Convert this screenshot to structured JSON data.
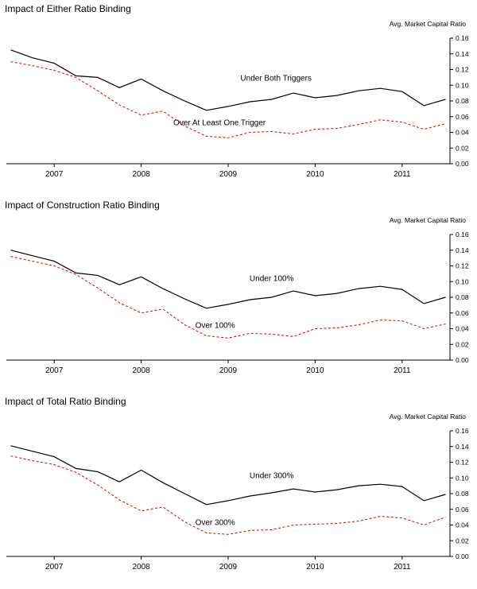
{
  "page": {
    "background": "#ffffff"
  },
  "chart_data": [
    {
      "type": "line",
      "title": "Impact of Either Ratio Binding",
      "y_axis_note": "Avg. Market Capital Ratio",
      "xlim": [
        2006.45,
        2011.55
      ],
      "ylim": [
        0,
        0.16
      ],
      "x_ticks": [
        2007,
        2008,
        2009,
        2010,
        2011
      ],
      "x_tick_labels": [
        "2007",
        "2008",
        "2009",
        "2010",
        "2011"
      ],
      "y_ticks": [
        0.0,
        0.02,
        0.04,
        0.06,
        0.08,
        0.1,
        0.12,
        0.14,
        0.16
      ],
      "grid": false,
      "legend": "inline-annotations",
      "x": [
        2006.5,
        2006.75,
        2007,
        2007.25,
        2007.5,
        2007.75,
        2008,
        2008.25,
        2008.5,
        2008.75,
        2009,
        2009.25,
        2009.5,
        2009.75,
        2010,
        2010.25,
        2010.5,
        2010.75,
        2011,
        2011.25,
        2011.5
      ],
      "series": [
        {
          "id": "under",
          "name": "Under Both Triggers",
          "color": "#000000",
          "style": "solid",
          "values": [
            0.145,
            0.135,
            0.128,
            0.112,
            0.11,
            0.097,
            0.108,
            0.093,
            0.08,
            0.068,
            0.073,
            0.079,
            0.082,
            0.09,
            0.084,
            0.087,
            0.093,
            0.096,
            0.092,
            0.074,
            0.082
          ],
          "label_pos": {
            "x": 2009.55,
            "y": 0.106
          }
        },
        {
          "id": "over",
          "name": "Over At Least One Trigger",
          "color": "#d40000",
          "style": "dashed",
          "values": [
            0.13,
            0.125,
            0.119,
            0.11,
            0.093,
            0.075,
            0.062,
            0.067,
            0.048,
            0.035,
            0.033,
            0.04,
            0.041,
            0.038,
            0.044,
            0.045,
            0.05,
            0.056,
            0.053,
            0.044,
            0.051
          ],
          "label_pos": {
            "x": 2008.9,
            "y": 0.049
          }
        }
      ]
    },
    {
      "type": "line",
      "title": "Impact of Construction Ratio Binding",
      "y_axis_note": "Avg. Market Capital Ratio",
      "xlim": [
        2006.45,
        2011.55
      ],
      "ylim": [
        0,
        0.16
      ],
      "x_ticks": [
        2007,
        2008,
        2009,
        2010,
        2011
      ],
      "x_tick_labels": [
        "2007",
        "2008",
        "2009",
        "2010",
        "2011"
      ],
      "y_ticks": [
        0.0,
        0.02,
        0.04,
        0.06,
        0.08,
        0.1,
        0.12,
        0.14,
        0.16
      ],
      "grid": false,
      "legend": "inline-annotations",
      "x": [
        2006.5,
        2006.75,
        2007,
        2007.25,
        2007.5,
        2007.75,
        2008,
        2008.25,
        2008.5,
        2008.75,
        2009,
        2009.25,
        2009.5,
        2009.75,
        2010,
        2010.25,
        2010.5,
        2010.75,
        2011,
        2011.25,
        2011.5
      ],
      "series": [
        {
          "id": "under",
          "name": "Under 100%",
          "color": "#000000",
          "style": "solid",
          "values": [
            0.14,
            0.133,
            0.126,
            0.111,
            0.108,
            0.096,
            0.106,
            0.091,
            0.078,
            0.066,
            0.071,
            0.077,
            0.08,
            0.088,
            0.082,
            0.085,
            0.091,
            0.094,
            0.09,
            0.072,
            0.08
          ],
          "label_pos": {
            "x": 2009.5,
            "y": 0.101
          }
        },
        {
          "id": "over",
          "name": "Over 100%",
          "color": "#d40000",
          "style": "dashed",
          "values": [
            0.132,
            0.126,
            0.12,
            0.109,
            0.092,
            0.073,
            0.06,
            0.065,
            0.045,
            0.031,
            0.028,
            0.034,
            0.033,
            0.03,
            0.04,
            0.041,
            0.045,
            0.051,
            0.05,
            0.04,
            0.046
          ],
          "label_pos": {
            "x": 2008.85,
            "y": 0.041
          }
        }
      ]
    },
    {
      "type": "line",
      "title": "Impact of Total Ratio Binding",
      "y_axis_note": "Avg. Market Capital Ratio",
      "xlim": [
        2006.45,
        2011.55
      ],
      "ylim": [
        0,
        0.16
      ],
      "x_ticks": [
        2007,
        2008,
        2009,
        2010,
        2011
      ],
      "x_tick_labels": [
        "2007",
        "2008",
        "2009",
        "2010",
        "2011"
      ],
      "y_ticks": [
        0.0,
        0.02,
        0.04,
        0.06,
        0.08,
        0.1,
        0.12,
        0.14,
        0.16
      ],
      "grid": false,
      "legend": "inline-annotations",
      "x": [
        2006.5,
        2006.75,
        2007,
        2007.25,
        2007.5,
        2007.75,
        2008,
        2008.25,
        2008.5,
        2008.75,
        2009,
        2009.25,
        2009.5,
        2009.75,
        2010,
        2010.25,
        2010.5,
        2010.75,
        2011,
        2011.25,
        2011.5
      ],
      "series": [
        {
          "id": "under",
          "name": "Under 300%",
          "color": "#000000",
          "style": "solid",
          "values": [
            0.141,
            0.134,
            0.127,
            0.112,
            0.108,
            0.095,
            0.11,
            0.094,
            0.08,
            0.066,
            0.071,
            0.077,
            0.081,
            0.086,
            0.082,
            0.085,
            0.09,
            0.092,
            0.089,
            0.071,
            0.079
          ],
          "label_pos": {
            "x": 2009.5,
            "y": 0.1
          }
        },
        {
          "id": "over",
          "name": "Over 300%",
          "color": "#d40000",
          "style": "dashed",
          "values": [
            0.128,
            0.122,
            0.117,
            0.107,
            0.091,
            0.072,
            0.058,
            0.063,
            0.044,
            0.03,
            0.028,
            0.033,
            0.034,
            0.04,
            0.041,
            0.042,
            0.045,
            0.051,
            0.049,
            0.04,
            0.05
          ],
          "label_pos": {
            "x": 2008.85,
            "y": 0.04
          }
        }
      ]
    }
  ]
}
